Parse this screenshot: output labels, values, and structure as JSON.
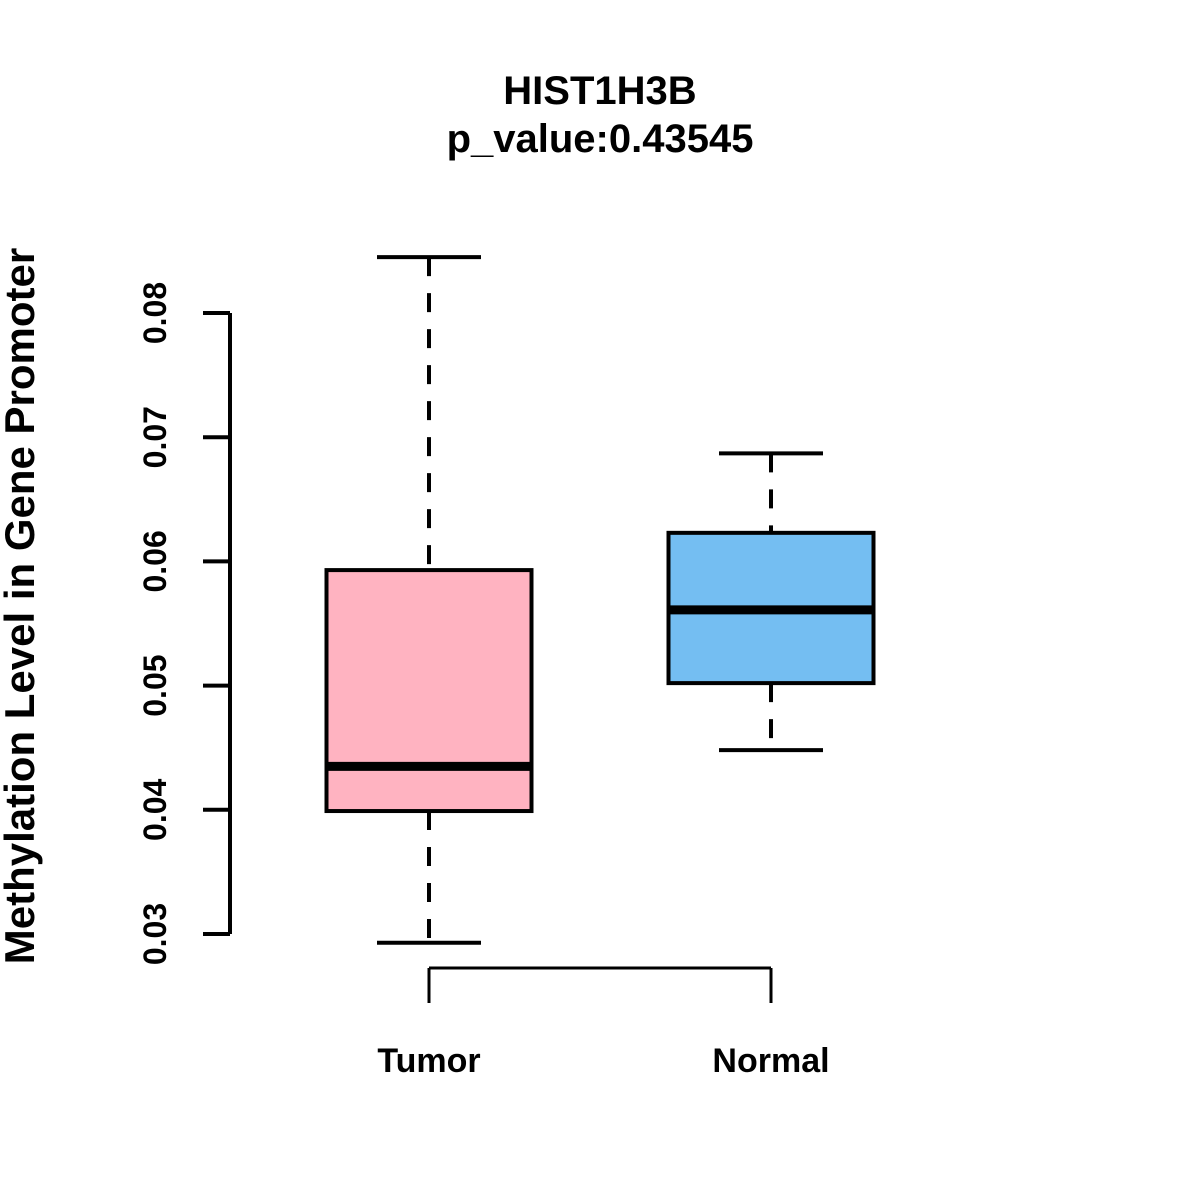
{
  "page": {
    "background": "#ffffff",
    "text_color": "#000000"
  },
  "chart_data": {
    "type": "box",
    "title": "HIST1H3B",
    "subtitle": "p_value:0.43545",
    "p_value_text": "p_value:0.43545",
    "ylabel": "Methylation Level in Gene Promoter",
    "xlabel": "",
    "categories": [
      "Tumor",
      "Normal"
    ],
    "series": [
      {
        "name": "Tumor",
        "color": "#FFB3C1",
        "whisker_low": 0.0293,
        "q1": 0.0399,
        "median": 0.0435,
        "q3": 0.0593,
        "whisker_high": 0.0845
      },
      {
        "name": "Normal",
        "color": "#74BEF2",
        "whisker_low": 0.0448,
        "q1": 0.0502,
        "median": 0.0561,
        "q3": 0.0623,
        "whisker_high": 0.0687
      }
    ],
    "ytick_labels": [
      "0.03",
      "0.04",
      "0.05",
      "0.06",
      "0.07",
      "0.08"
    ],
    "ytick_values": [
      0.03,
      0.04,
      0.05,
      0.06,
      0.07,
      0.08
    ],
    "ylim": [
      0.029,
      0.0855
    ],
    "grid": false,
    "legend": "none",
    "stroke_color": "#000000",
    "box_style": "dashed-whiskers-with-staples"
  }
}
